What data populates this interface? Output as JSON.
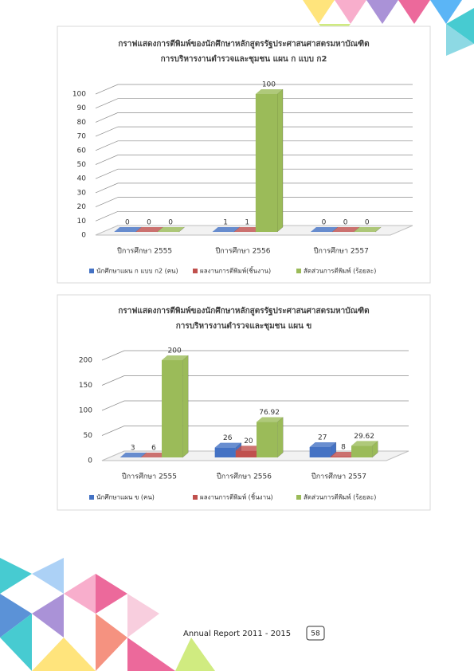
{
  "chart_data": [
    {
      "type": "bar",
      "title": [
        "กราฟแสดงการตีพิมพ์ของนักศึกษาหลักสูตรรัฐประศาสนศาสตรมหาบัณฑิต",
        "การบริหารงานตำรวจและชุมชน แผน ก แบบ ก2"
      ],
      "categories": [
        "ปีการศึกษา 2555",
        "ปีการศึกษา 2556",
        "ปีการศึกษา 2557"
      ],
      "series": [
        {
          "name": "นักศึกษาแผน ก แบบ ก2 (คน)",
          "color": "#4472c4",
          "values": [
            0,
            1,
            0
          ]
        },
        {
          "name": "ผลงานการตีพิมพ์(ชิ้นงาน)",
          "color": "#c0504d",
          "values": [
            0,
            1,
            0
          ]
        },
        {
          "name": "สัดส่วนการตีพิมพ์ (ร้อยละ)",
          "color": "#9bbb59",
          "values": [
            0,
            100,
            0
          ]
        }
      ],
      "ylim": [
        0,
        100
      ],
      "yticks": [
        0,
        10,
        20,
        30,
        40,
        50,
        60,
        70,
        80,
        90,
        100
      ],
      "grid": true
    },
    {
      "type": "bar",
      "title": [
        "กราฟแสดงการตีพิมพ์ของนักศึกษาหลักสูตรรัฐประศาสนศาสตรมหาบัณฑิต",
        "การบริหารงานตำรวจและชุมชน แผน ข"
      ],
      "categories": [
        "ปีการศึกษา 2555",
        "ปีการศึกษา 2556",
        "ปีการศึกษา 2557"
      ],
      "series": [
        {
          "name": "นักศึกษาแผน ข (คน)",
          "color": "#4472c4",
          "values": [
            3,
            26,
            27
          ]
        },
        {
          "name": "ผลงานการตีพิมพ์ (ชิ้นงาน)",
          "color": "#c0504d",
          "values": [
            6,
            20,
            8
          ]
        },
        {
          "name": "สัดส่วนการตีพิมพ์ (ร้อยละ)",
          "color": "#9bbb59",
          "values": [
            200,
            76.92,
            29.62
          ]
        }
      ],
      "ylim": [
        0,
        200
      ],
      "yticks": [
        0,
        50,
        100,
        150,
        200
      ],
      "grid": true
    }
  ],
  "footer": {
    "report": "Annual Report 2011 - 2015",
    "page": "58"
  }
}
